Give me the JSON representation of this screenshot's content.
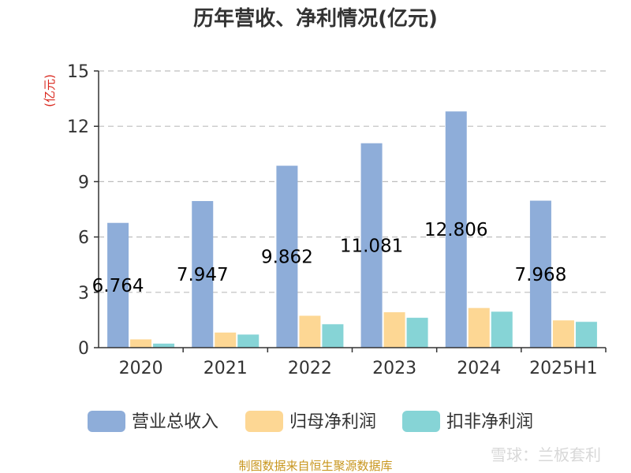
{
  "chart_data": {
    "type": "bar",
    "title": "历年营收、净利情况(亿元)",
    "ylabel": "(亿元)",
    "xlabel": "",
    "categories": [
      "2020",
      "2021",
      "2022",
      "2023",
      "2024",
      "2025H1"
    ],
    "ylim": [
      0,
      15
    ],
    "yticks": [
      "0",
      "3",
      "6",
      "9",
      "12",
      "15"
    ],
    "grid": true,
    "legend_position": "bottom",
    "series": [
      {
        "name": "营业总收入",
        "color": "#8eadd9",
        "values": [
          6.764,
          7.947,
          9.862,
          11.081,
          12.806,
          7.968
        ],
        "labels": [
          "6.764",
          "7.947",
          "9.862",
          "11.081",
          "12.806",
          "7.968"
        ]
      },
      {
        "name": "归母净利润",
        "color": "#fdd794",
        "values": [
          0.45,
          0.82,
          1.73,
          1.92,
          2.15,
          1.48
        ]
      },
      {
        "name": "扣非净利润",
        "color": "#86d4d6",
        "values": [
          0.22,
          0.71,
          1.27,
          1.62,
          1.95,
          1.4
        ]
      }
    ]
  },
  "footer": {
    "source": "制图数据来自恒生聚源数据库",
    "watermark": "雪球：兰板套利"
  }
}
